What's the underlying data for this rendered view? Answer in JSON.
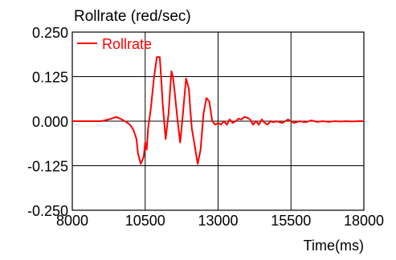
{
  "chart_data": {
    "type": "line",
    "title": "",
    "ylabel": "Rollrate (red/sec)",
    "xlabel": "Time(ms)",
    "xlim": [
      8000,
      18000
    ],
    "ylim": [
      -0.25,
      0.25
    ],
    "x_ticks": [
      "8000",
      "10500",
      "13000",
      "15500",
      "18000"
    ],
    "y_ticks": [
      "0.250",
      "0.125",
      "0.000",
      "-0.125",
      "-0.250"
    ],
    "grid": true,
    "legend_position": "top-left",
    "series": [
      {
        "name": "Rollrate",
        "color": "#ff0000",
        "x": [
          8000,
          9000,
          9300,
          9500,
          9700,
          9900,
          10000,
          10100,
          10200,
          10250,
          10350,
          10450,
          10500,
          10550,
          10600,
          10700,
          10800,
          10900,
          11000,
          11050,
          11100,
          11200,
          11300,
          11400,
          11450,
          11500,
          11600,
          11700,
          11800,
          11900,
          12000,
          12050,
          12100,
          12200,
          12300,
          12400,
          12500,
          12600,
          12700,
          12800,
          12900,
          13000,
          13100,
          13200,
          13300,
          13400,
          13500,
          13600,
          13700,
          13800,
          13900,
          14000,
          14100,
          14200,
          14300,
          14400,
          14500,
          14600,
          14700,
          14800,
          14900,
          15000,
          15200,
          15400,
          15600,
          15800,
          16000,
          16200,
          16400,
          16600,
          16800,
          17000,
          17200,
          17400,
          17600,
          17800,
          18000
        ],
        "values": [
          0.0,
          0.0,
          0.006,
          0.012,
          0.005,
          -0.005,
          -0.012,
          -0.025,
          -0.05,
          -0.09,
          -0.12,
          -0.1,
          -0.06,
          -0.08,
          -0.02,
          0.04,
          0.12,
          0.18,
          0.18,
          0.12,
          0.05,
          -0.05,
          0.02,
          0.14,
          0.125,
          0.09,
          0.01,
          -0.06,
          0.025,
          0.12,
          0.09,
          0.03,
          -0.02,
          -0.07,
          -0.12,
          -0.08,
          0.02,
          0.065,
          0.055,
          0.0,
          -0.01,
          -0.005,
          -0.01,
          0.0,
          -0.01,
          0.005,
          -0.005,
          0.0,
          0.007,
          0.005,
          0.012,
          0.01,
          0.005,
          -0.01,
          0.0,
          -0.01,
          0.005,
          -0.005,
          -0.01,
          0.0,
          -0.003,
          0.0,
          -0.005,
          0.005,
          -0.005,
          0.0,
          -0.003,
          0.002,
          -0.002,
          0.0,
          -0.002,
          0.0,
          -0.001,
          0.0,
          -0.001,
          0.0,
          0.0
        ]
      }
    ]
  }
}
